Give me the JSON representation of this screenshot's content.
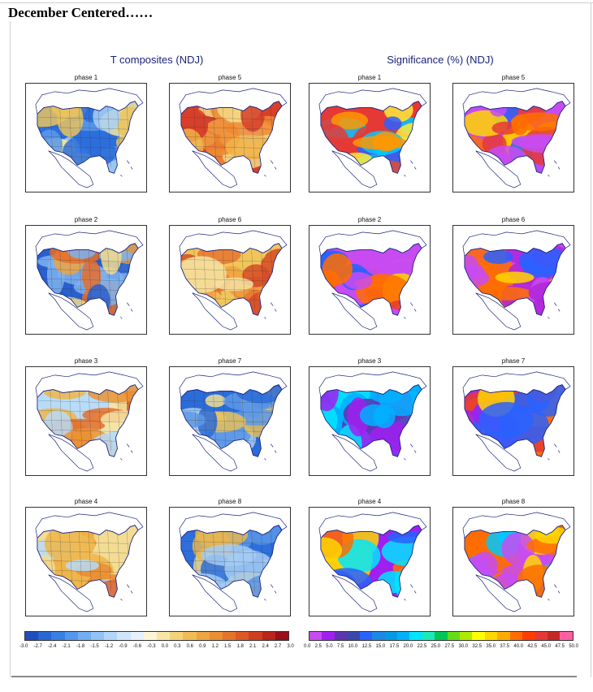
{
  "page": {
    "title": "December Centered……"
  },
  "sections": {
    "temperature": {
      "title": "T composites (NDJ)"
    },
    "significance": {
      "title": "Significance (%) (NDJ)"
    }
  },
  "panels": {
    "t": [
      {
        "label": "phase 1",
        "palette": [
          "#2d6fdc",
          "#5d9ae9",
          "#a9d0f5",
          "#f4e7a0",
          "#e9c35e"
        ]
      },
      {
        "label": "phase 5",
        "palette": [
          "#d7402a",
          "#ef8a32",
          "#f1b346",
          "#f4da86",
          "#c6e2f7"
        ]
      },
      {
        "label": "phase 2",
        "palette": [
          "#2a5fcd",
          "#7fb3ee",
          "#f2dc8d",
          "#eea441",
          "#e56e2c"
        ]
      },
      {
        "label": "phase 6",
        "palette": [
          "#f0c55a",
          "#f0a13e",
          "#e77630",
          "#d64a27",
          "#f5e1a1"
        ]
      },
      {
        "label": "phase 3",
        "palette": [
          "#b8dcf8",
          "#f5e4a6",
          "#efb64b",
          "#eb9335",
          "#e46f2b"
        ]
      },
      {
        "label": "phase 7",
        "palette": [
          "#2b6cd9",
          "#5d99e9",
          "#a8cff4",
          "#f1de95",
          "#e5c05b"
        ]
      },
      {
        "label": "phase 4",
        "palette": [
          "#f3dc93",
          "#efb549",
          "#ea8c34",
          "#e0642b",
          "#b7dbf7"
        ]
      },
      {
        "label": "phase 8",
        "palette": [
          "#2d6fdc",
          "#5a96e8",
          "#a5cdf4",
          "#f2d98a",
          "#e8b650"
        ]
      }
    ],
    "s": [
      {
        "label": "phase 1",
        "palette": [
          "#e53935",
          "#ff9800",
          "#ffeb3b",
          "#00c8ff",
          "#2962ff"
        ]
      },
      {
        "label": "phase 5",
        "palette": [
          "#c84bf2",
          "#2962ff",
          "#ff6d00",
          "#ffd600",
          "#e53935"
        ]
      },
      {
        "label": "phase 2",
        "palette": [
          "#c84bf2",
          "#2962ff",
          "#ffd600",
          "#ff6d00",
          "#e53935"
        ]
      },
      {
        "label": "phase 6",
        "palette": [
          "#c84bf2",
          "#b026d8",
          "#2962ff",
          "#ffd600",
          "#ff6d00"
        ]
      },
      {
        "label": "phase 3",
        "palette": [
          "#00b0ff",
          "#2962ff",
          "#5e35b1",
          "#a020f0",
          "#00e5ff"
        ]
      },
      {
        "label": "phase 7",
        "palette": [
          "#ff6d00",
          "#e53935",
          "#ffd600",
          "#2962ff",
          "#a020f0"
        ]
      },
      {
        "label": "phase 4",
        "palette": [
          "#a020f0",
          "#2962ff",
          "#ffd600",
          "#ff6d00",
          "#00e5ff"
        ]
      },
      {
        "label": "phase 8",
        "palette": [
          "#ff6d00",
          "#00c8ff",
          "#2962ff",
          "#ffd600",
          "#c84bf2"
        ]
      }
    ]
  },
  "colorbars": {
    "temperature": {
      "colors": [
        "#1f4fbf",
        "#2a66d6",
        "#3a7fe4",
        "#5497ec",
        "#72aef1",
        "#92c3f5",
        "#b2d6f8",
        "#cfe5fa",
        "#e6f1fb",
        "#fdf6d6",
        "#f8e6a6",
        "#f3d27a",
        "#f0bd55",
        "#ed a53f",
        "#ea8f33",
        "#e5742b",
        "#dd5a25",
        "#cf3f20",
        "#b9261b",
        "#98101a"
      ],
      "ticks": [
        "-3.0",
        "-2.7",
        "-2.4",
        "-2.1",
        "-1.8",
        "-1.5",
        "-1.2",
        "-0.9",
        "-0.6",
        "-0.3",
        "0.0",
        "0.3",
        "0.6",
        "0.9",
        "1.2",
        "1.5",
        "1.8",
        "2.1",
        "2.4",
        "2.7",
        "3.0"
      ]
    },
    "significance": {
      "colors": [
        "#c84bf2",
        "#a020f0",
        "#5e35b1",
        "#3949ab",
        "#2962ff",
        "#1e88e5",
        "#039be5",
        "#00b0ff",
        "#00e5ff",
        "#1de9b6",
        "#00c853",
        "#64dd17",
        "#aeea00",
        "#ffff00",
        "#ffd600",
        "#ffab00",
        "#ff6d00",
        "#ff3d00",
        "#e53935",
        "#c62828",
        "#ff5fa2"
      ],
      "ticks": [
        "0.0",
        "2.5",
        "5.0",
        "7.5",
        "10.0",
        "12.5",
        "15.0",
        "17.5",
        "20.0",
        "22.5",
        "25.0",
        "27.5",
        "30.0",
        "32.5",
        "35.0",
        "37.5",
        "40.0",
        "42.5",
        "45.0",
        "47.5",
        "50.0"
      ]
    }
  }
}
